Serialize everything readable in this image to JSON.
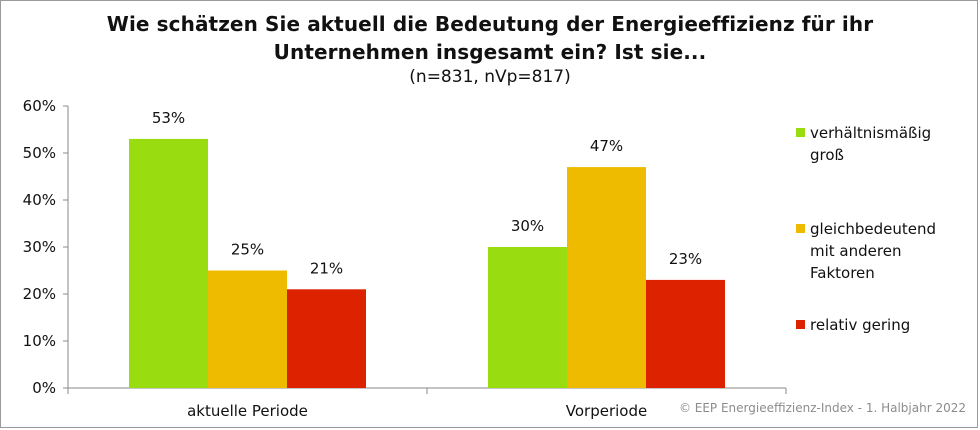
{
  "chart_data": {
    "type": "bar",
    "title_line1": "Wie schätzen Sie aktuell die Bedeutung der Energieeffizienz für ihr",
    "title_line2": "Unternehmen insgesamt ein? Ist sie...",
    "subtitle": "(n=831, nVp=817)",
    "categories": [
      "aktuelle Periode",
      "Vorperiode"
    ],
    "series": [
      {
        "name": "verhältnismäßig groß",
        "legend_lines": [
          "verhältnismäßig",
          "groß"
        ],
        "color": "#99dd11",
        "values": [
          53,
          30
        ],
        "labels": [
          "53%",
          "30%"
        ]
      },
      {
        "name": "gleichbedeutend mit anderen Faktoren",
        "legend_lines": [
          "gleichbedeutend",
          "mit anderen",
          "Faktoren"
        ],
        "color": "#eebb00",
        "values": [
          25,
          47
        ],
        "labels": [
          "25%",
          "47%"
        ]
      },
      {
        "name": "relativ gering",
        "legend_lines": [
          "relativ gering"
        ],
        "color": "#dd2200",
        "values": [
          21,
          23
        ],
        "labels": [
          "21%",
          "23%"
        ]
      }
    ],
    "ylim": [
      0,
      60
    ],
    "yticks": [
      "0%",
      "10%",
      "20%",
      "30%",
      "40%",
      "50%",
      "60%"
    ],
    "ytick_values": [
      0,
      10,
      20,
      30,
      40,
      50,
      60
    ],
    "xlabel": "",
    "ylabel": "",
    "grid": false,
    "legend_position": "right"
  },
  "footer": {
    "copyright": "© EEP Energieeffizienz-Index - 1. Halbjahr 2022"
  }
}
